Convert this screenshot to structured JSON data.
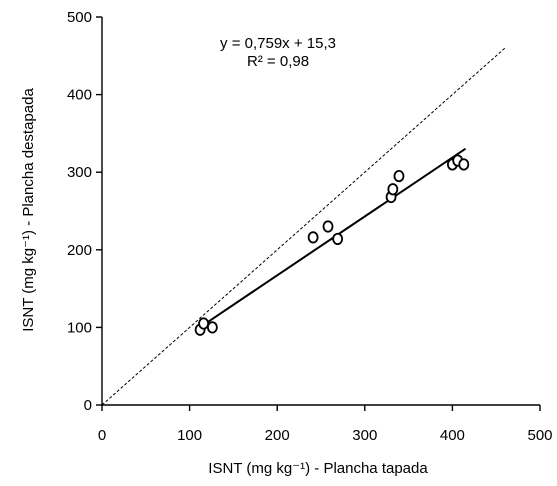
{
  "chart_data": {
    "type": "scatter",
    "xlabel": "ISNT (mg kg⁻¹) - Plancha tapada",
    "ylabel": "ISNT (mg kg⁻¹) - Plancha destapada",
    "xlim": [
      0,
      500
    ],
    "ylim": [
      0,
      500
    ],
    "x_ticks": [
      0,
      100,
      200,
      300,
      400,
      500
    ],
    "y_ticks": [
      0,
      100,
      200,
      300,
      400,
      500
    ],
    "grid": false,
    "series": [
      {
        "points": [
          {
            "x": 112,
            "y": 97
          },
          {
            "x": 116,
            "y": 105
          },
          {
            "x": 126,
            "y": 100
          },
          {
            "x": 241,
            "y": 216
          },
          {
            "x": 258,
            "y": 230
          },
          {
            "x": 269,
            "y": 214
          },
          {
            "x": 330,
            "y": 268
          },
          {
            "x": 332,
            "y": 278
          },
          {
            "x": 339,
            "y": 295
          },
          {
            "x": 400,
            "y": 310
          },
          {
            "x": 406,
            "y": 315
          },
          {
            "x": 413,
            "y": 310
          }
        ]
      }
    ],
    "fit_line": {
      "slope": 0.759,
      "intercept": 15.3,
      "x_range": [
        115,
        415
      ]
    },
    "identity_line": {
      "x_range": [
        0,
        460
      ]
    },
    "annotations": {
      "equation": "y = 0,759x + 15,3",
      "r2": "R² = 0,98"
    }
  }
}
